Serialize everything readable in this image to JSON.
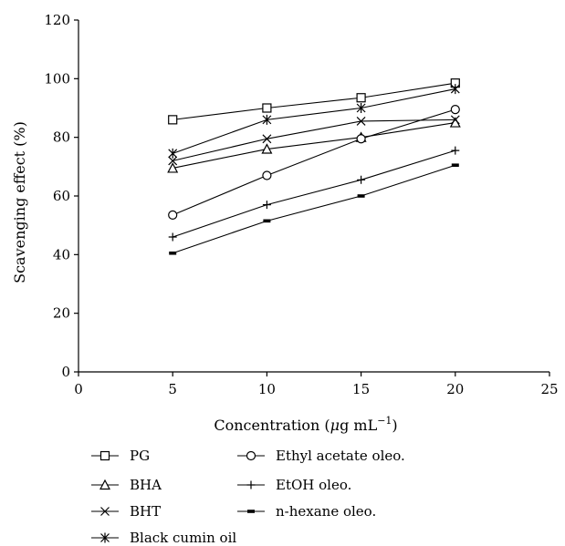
{
  "chart_data": {
    "type": "line",
    "xlabel_prefix": "Concentration (",
    "xlabel_mu": "μ",
    "xlabel_unit": "g mL",
    "xlabel_exp": "−1",
    "xlabel_suffix": ")",
    "ylabel": "Scavenging effect (%)",
    "xlim": [
      0,
      25
    ],
    "ylim": [
      0,
      120
    ],
    "xticks": [
      0,
      5,
      10,
      15,
      20,
      25
    ],
    "yticks": [
      0,
      20,
      40,
      60,
      80,
      100,
      120
    ],
    "x": [
      5,
      10,
      15,
      20
    ],
    "grid": false,
    "legend_position": "bottom",
    "series": [
      {
        "name": "PG",
        "marker": "square",
        "values": [
          86,
          90,
          93.5,
          98.5
        ]
      },
      {
        "name": "BHA",
        "marker": "triangle",
        "values": [
          69.5,
          76,
          80,
          85
        ]
      },
      {
        "name": "BHT",
        "marker": "x",
        "values": [
          72,
          79.5,
          85.5,
          86
        ]
      },
      {
        "name": "Black cumin oil",
        "marker": "asterisk",
        "values": [
          74.5,
          86,
          90,
          96.5
        ]
      },
      {
        "name": "Ethyl acetate oleo.",
        "marker": "circle",
        "values": [
          53.5,
          67,
          79.5,
          89.5
        ]
      },
      {
        "name": "EtOH oleo.",
        "marker": "plus",
        "values": [
          46,
          57,
          65.5,
          75.5
        ]
      },
      {
        "name": "n-hexane oleo.",
        "marker": "dash",
        "values": [
          40.5,
          51.5,
          60,
          70.5
        ]
      }
    ]
  }
}
